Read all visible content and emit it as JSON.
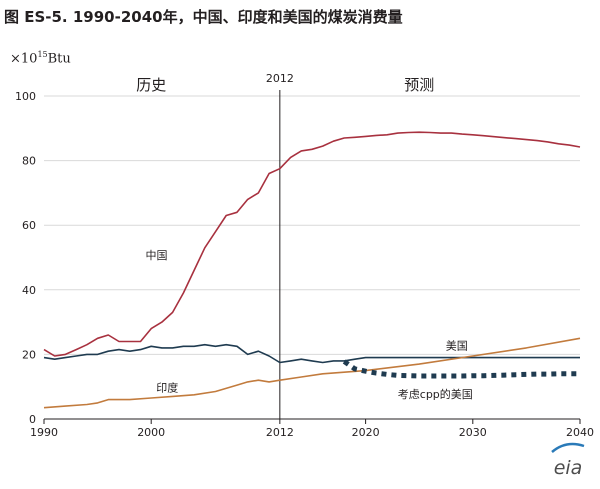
{
  "title": "图 ES-5.  1990-2040年，中国、印度和美国的煤炭消费量",
  "unit": {
    "prefix": "×10",
    "exp": "15",
    "suffix": "Btu"
  },
  "logo": "eia",
  "colors": {
    "china": "#a8313f",
    "usa": "#1f3b50",
    "india": "#c27b3d",
    "usa_cpp": "#1f3b50",
    "axis": "#231f20",
    "grid": "#d9d9d9"
  },
  "chart_data": {
    "type": "line",
    "title": "图 ES-5.  1990-2040年，中国、印度和美国的煤炭消费量",
    "ylabel": "×10^15 Btu",
    "xlabel": "",
    "xlim": [
      1990,
      2040
    ],
    "ylim": [
      0,
      100
    ],
    "x_ticks": [
      "1990",
      "2000",
      "2012",
      "2020",
      "2030",
      "2040"
    ],
    "x_tick_values": [
      1990,
      2000,
      2012,
      2020,
      2030,
      2040
    ],
    "y_ticks": [
      "0",
      "20",
      "40",
      "60",
      "80",
      "100"
    ],
    "y_tick_values": [
      0,
      20,
      40,
      60,
      80,
      100
    ],
    "grid": "horizontal",
    "divider": {
      "year": 2012,
      "label": "2012"
    },
    "periods": {
      "history": "历史",
      "projection": "预测"
    },
    "series": [
      {
        "name": "中国",
        "style": "solid",
        "x": [
          1990,
          1991,
          1992,
          1993,
          1994,
          1995,
          1996,
          1997,
          1998,
          1999,
          2000,
          2001,
          2002,
          2003,
          2004,
          2005,
          2006,
          2007,
          2008,
          2009,
          2010,
          2011,
          2012,
          2013,
          2014,
          2015,
          2016,
          2017,
          2018,
          2019,
          2020,
          2021,
          2022,
          2023,
          2024,
          2025,
          2026,
          2027,
          2028,
          2029,
          2030,
          2031,
          2032,
          2033,
          2034,
          2035,
          2036,
          2037,
          2038,
          2039,
          2040
        ],
        "y": [
          21.5,
          19.5,
          20,
          21.5,
          23,
          25,
          26,
          24,
          24,
          24,
          28,
          30,
          33,
          39,
          46,
          53,
          58,
          63,
          64,
          68,
          70,
          76,
          77.5,
          81,
          83,
          83.5,
          84.5,
          86,
          87,
          87.2,
          87.5,
          87.8,
          88,
          88.5,
          88.7,
          88.8,
          88.7,
          88.5,
          88.5,
          88.2,
          88,
          87.7,
          87.4,
          87.1,
          86.8,
          86.5,
          86.2,
          85.8,
          85.2,
          84.8,
          84.2
        ]
      },
      {
        "name": "美国",
        "style": "solid",
        "x": [
          1990,
          1991,
          1992,
          1993,
          1994,
          1995,
          1996,
          1997,
          1998,
          1999,
          2000,
          2001,
          2002,
          2003,
          2004,
          2005,
          2006,
          2007,
          2008,
          2009,
          2010,
          2011,
          2012,
          2013,
          2014,
          2015,
          2016,
          2017,
          2018,
          2019,
          2020,
          2025,
          2030,
          2035,
          2040
        ],
        "y": [
          19,
          18.5,
          19,
          19.5,
          20,
          20,
          21,
          21.5,
          21,
          21.5,
          22.5,
          22,
          22,
          22.5,
          22.5,
          23,
          22.5,
          23,
          22.5,
          20,
          21,
          19.5,
          17.5,
          18,
          18.5,
          18,
          17.5,
          18,
          18,
          18.5,
          19,
          19,
          19,
          19,
          19
        ]
      },
      {
        "name": "印度",
        "style": "solid",
        "x": [
          1990,
          1992,
          1994,
          1995,
          1996,
          1998,
          2000,
          2002,
          2004,
          2006,
          2008,
          2009,
          2010,
          2011,
          2012,
          2014,
          2016,
          2018,
          2020,
          2025,
          2030,
          2035,
          2040
        ],
        "y": [
          3.5,
          4,
          4.5,
          5,
          6,
          6,
          6.5,
          7,
          7.5,
          8.5,
          10.5,
          11.5,
          12,
          11.5,
          12,
          13,
          14,
          14.5,
          15,
          17,
          19.5,
          22,
          25
        ]
      },
      {
        "name": "考虑cpp的美国",
        "style": "dashed",
        "x": [
          2018,
          2019,
          2020,
          2021,
          2022,
          2023,
          2024,
          2025,
          2026,
          2027,
          2028,
          2029,
          2030,
          2031,
          2032,
          2033,
          2034,
          2035,
          2036,
          2037,
          2038,
          2039,
          2040
        ],
        "y": [
          17.8,
          15.5,
          14.8,
          14.2,
          13.8,
          13.5,
          13.4,
          13.3,
          13.3,
          13.3,
          13.3,
          13.3,
          13.4,
          13.4,
          13.5,
          13.6,
          13.7,
          13.8,
          13.9,
          13.9,
          14.0,
          14.0,
          14.0
        ]
      }
    ],
    "labels": {
      "china": "中国",
      "usa": "美国",
      "india": "印度",
      "usa_cpp": "考虑cpp的美国"
    }
  }
}
